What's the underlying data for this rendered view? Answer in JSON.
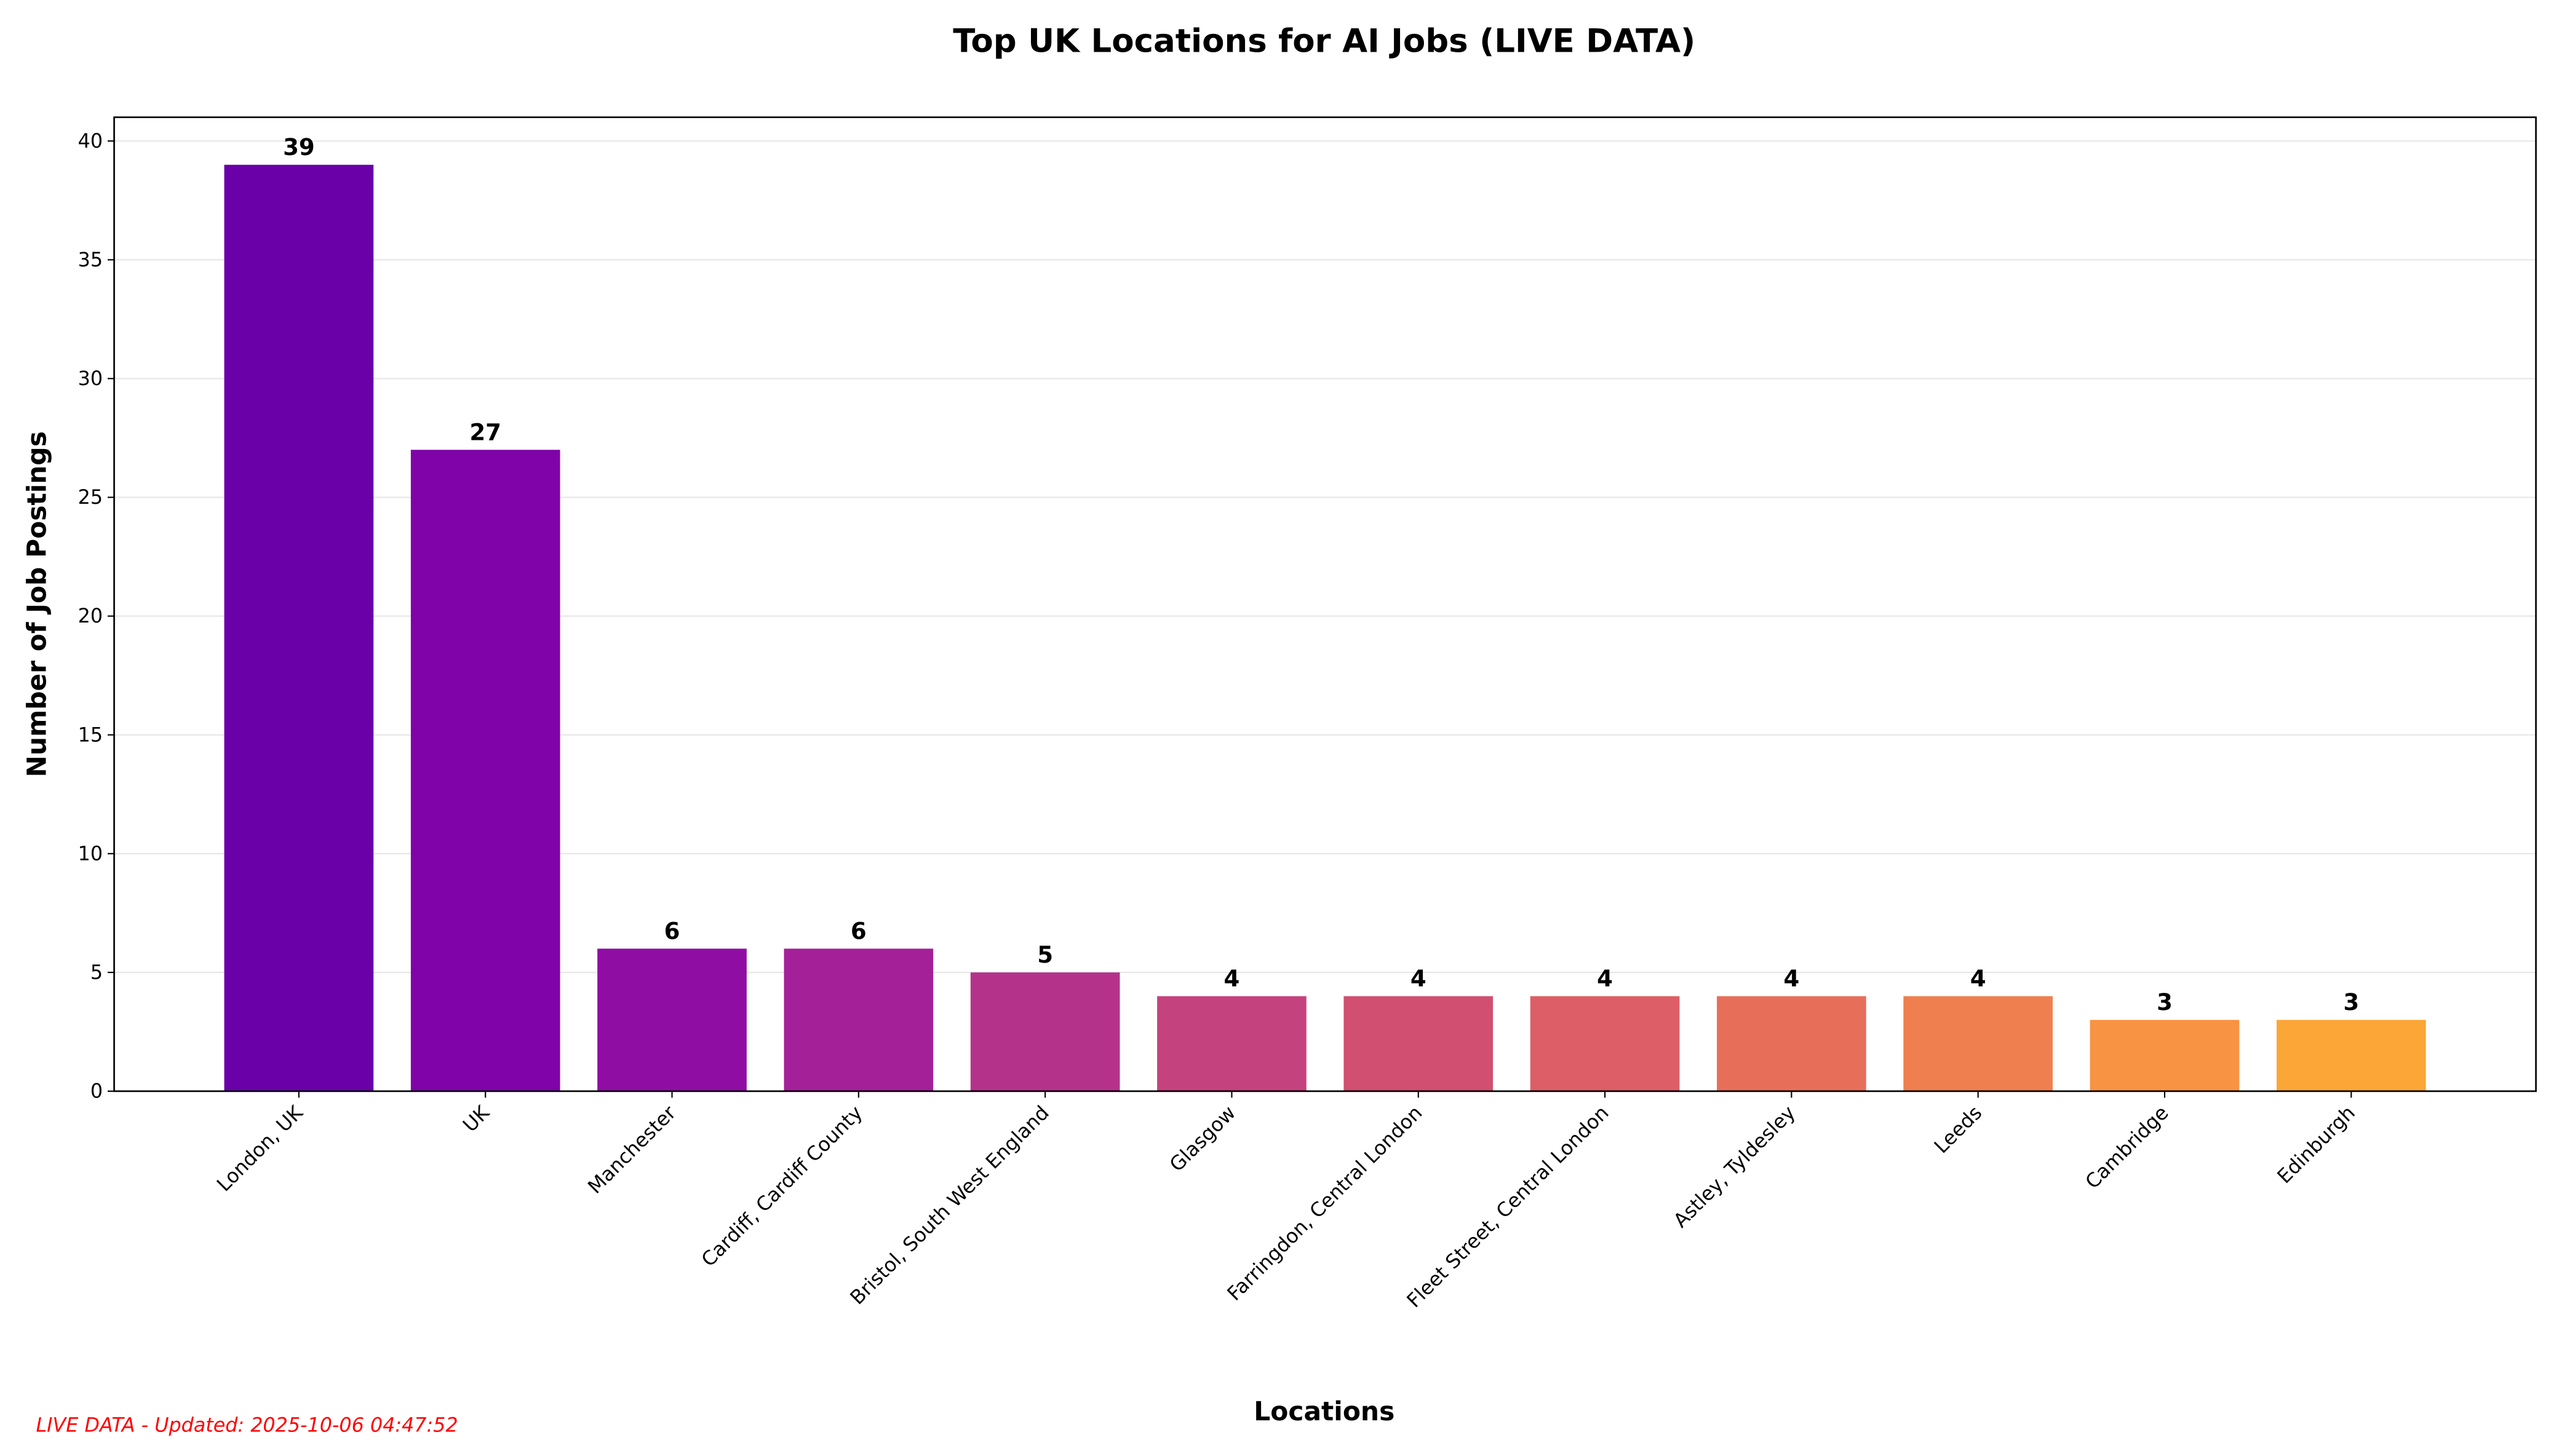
{
  "chart_data": {
    "type": "bar",
    "title": "Top UK Locations for AI Jobs (LIVE DATA)",
    "xlabel": "Locations",
    "ylabel": "Number of Job Postings",
    "categories": [
      "London, UK",
      "UK",
      "Manchester",
      "Cardiff, Cardiff County",
      "Bristol, South West England",
      "Glasgow",
      "Farringdon, Central London",
      "Fleet Street, Central London",
      "Astley, Tyldesley",
      "Leeds",
      "Cambridge",
      "Edinburgh"
    ],
    "values": [
      39,
      27,
      6,
      6,
      5,
      4,
      4,
      4,
      4,
      4,
      3,
      3
    ],
    "colors": [
      "#6900a8",
      "#7f03a8",
      "#900da4",
      "#a42099",
      "#b5328b",
      "#c4427e",
      "#d14f71",
      "#dd5e66",
      "#e76f5a",
      "#ef7f4f",
      "#f79342",
      "#fba637"
    ],
    "ylim": [
      0,
      41
    ],
    "yticks": [
      0,
      5,
      10,
      15,
      20,
      25,
      30,
      35,
      40
    ],
    "grid": "y",
    "data_labels": true
  },
  "footer": "LIVE DATA - Updated: 2025-10-06 04:47:52"
}
